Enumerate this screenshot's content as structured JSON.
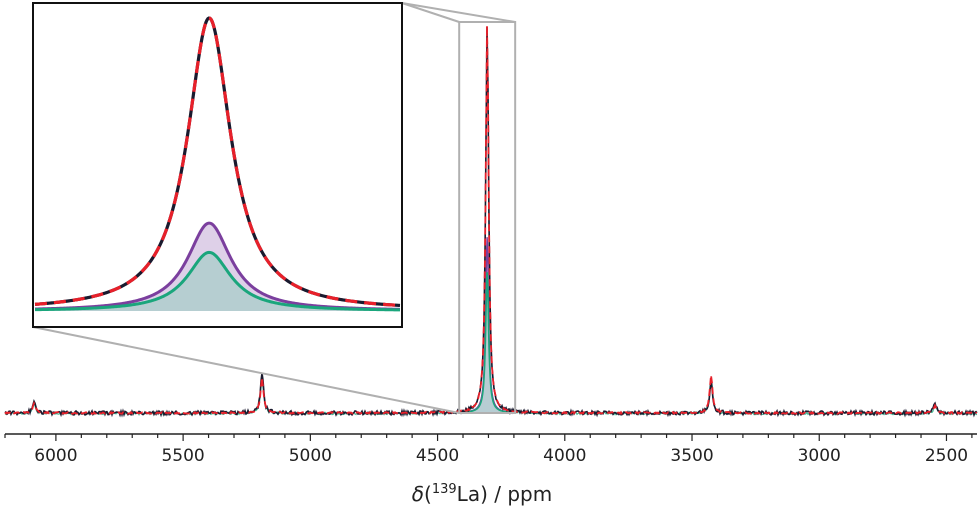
{
  "chart_data": {
    "type": "line",
    "title": "",
    "xlabel": {
      "symbol": "δ",
      "open": "(",
      "sup": "139",
      "element": "La",
      "close": ")",
      "unit": " / ppm"
    },
    "xlim": [
      6200,
      2380
    ],
    "x_reversed": true,
    "grid": false,
    "xticks": [
      {
        "value": 6000,
        "label": "6000"
      },
      {
        "value": 5500,
        "label": "5500"
      },
      {
        "value": 5000,
        "label": "5000"
      },
      {
        "value": 4500,
        "label": "4500"
      },
      {
        "value": 4000,
        "label": "4000"
      },
      {
        "value": 3500,
        "label": "3500"
      },
      {
        "value": 3000,
        "label": "3000"
      },
      {
        "value": 2500,
        "label": "2500"
      }
    ],
    "minor_tick_step": 100,
    "peaks": [
      {
        "position": 6085,
        "experimental": 0.033,
        "fit": 0.024
      },
      {
        "position": 5190,
        "experimental": 0.107,
        "fit": 0.09
      },
      {
        "position": 4305,
        "experimental": 1.0,
        "fit": 1.0,
        "component_1": 0.45,
        "component_2": 0.36
      },
      {
        "position": 3425,
        "experimental": 0.083,
        "fit": 0.095
      },
      {
        "position": 2545,
        "experimental": 0.025,
        "fit": 0.02
      }
    ],
    "zoom_window": {
      "x_from": 4415,
      "x_to": 4195
    },
    "series": [
      {
        "role": "experimental spectrum",
        "color": "#1a1a2e"
      },
      {
        "role": "fit (total)",
        "color": "#e8202a",
        "dashed": true
      },
      {
        "role": "component 1",
        "color": "#7b3f9e"
      },
      {
        "role": "component 2",
        "color": "#1aa67c"
      }
    ],
    "fill_colors": {
      "component_1": "#d8c8e4",
      "component_2": "#b3cdd0"
    },
    "frame_color": "#b0b0b0"
  }
}
